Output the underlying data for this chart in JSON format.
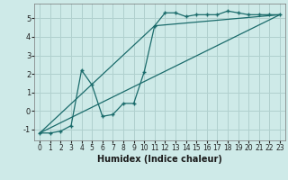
{
  "xlabel": "Humidex (Indice chaleur)",
  "bg_color": "#ceeae8",
  "grid_color": "#b0d0ce",
  "line_color": "#1a6b6b",
  "xlim": [
    -0.5,
    23.5
  ],
  "ylim": [
    -1.6,
    5.8
  ],
  "xticks": [
    0,
    1,
    2,
    3,
    4,
    5,
    6,
    7,
    8,
    9,
    10,
    11,
    12,
    13,
    14,
    15,
    16,
    17,
    18,
    19,
    20,
    21,
    22,
    23
  ],
  "yticks": [
    -1,
    0,
    1,
    2,
    3,
    4,
    5
  ],
  "curve_x": [
    0,
    1,
    2,
    3,
    4,
    5,
    6,
    7,
    8,
    9,
    10,
    11,
    12,
    13,
    14,
    15,
    16,
    17,
    18,
    19,
    20,
    21,
    22,
    23
  ],
  "curve_y": [
    -1.2,
    -1.2,
    -1.1,
    -0.8,
    2.2,
    1.4,
    -0.3,
    -0.2,
    0.4,
    0.4,
    2.1,
    4.6,
    5.3,
    5.3,
    5.1,
    5.2,
    5.2,
    5.2,
    5.4,
    5.3,
    5.2,
    5.2,
    5.2,
    5.2
  ],
  "line1_x": [
    0,
    23
  ],
  "line1_y": [
    -1.2,
    5.2
  ],
  "line2_x": [
    0,
    11,
    23
  ],
  "line2_y": [
    -1.2,
    4.6,
    5.2
  ]
}
